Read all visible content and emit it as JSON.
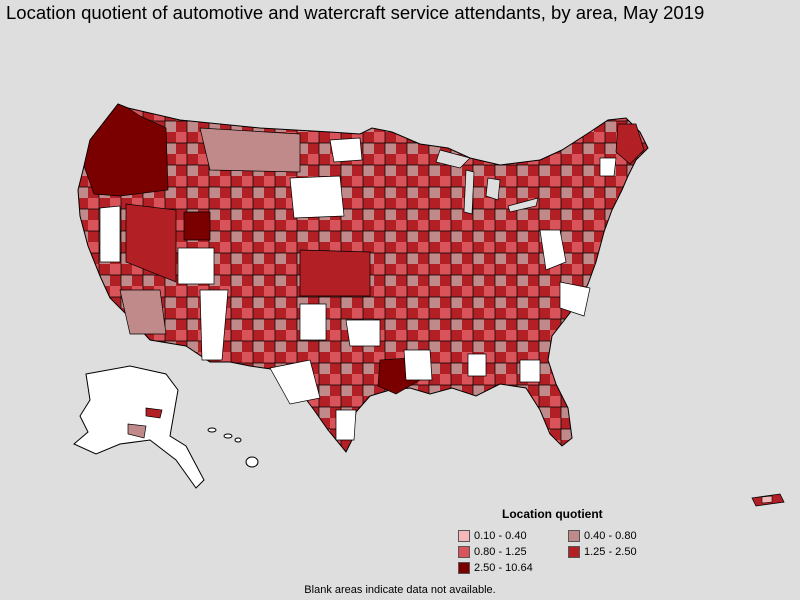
{
  "title": "Location quotient of automotive and watercraft service attendants, by area, May 2019",
  "legend": {
    "title": "Location quotient",
    "items": [
      {
        "label": "0.10 - 0.40",
        "color": "#f4b8b8"
      },
      {
        "label": "0.40 - 0.80",
        "color": "#c08a8a"
      },
      {
        "label": "0.80 - 1.25",
        "color": "#d9545a"
      },
      {
        "label": "1.25 - 2.50",
        "color": "#b21f24"
      },
      {
        "label": "2.50 - 10.64",
        "color": "#7a0000"
      }
    ]
  },
  "footnote": "Blank areas indicate data not available.",
  "colors": {
    "background": "#dedede",
    "blank": "#ffffff",
    "border": "#000000"
  }
}
